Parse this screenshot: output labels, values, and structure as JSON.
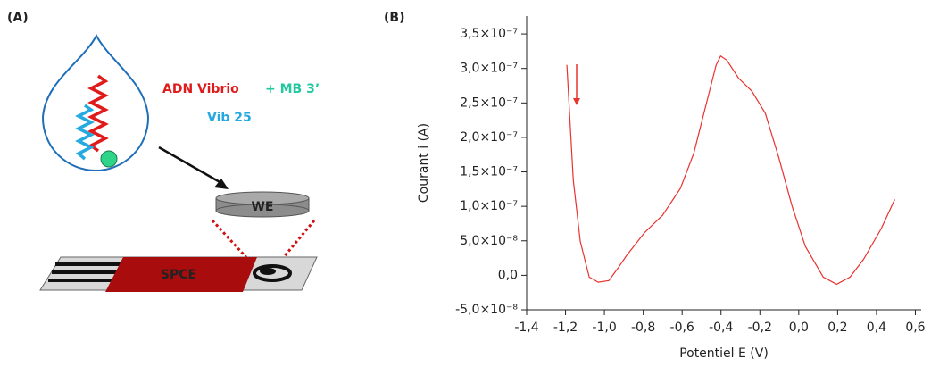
{
  "panel_a": {
    "label": "(A)",
    "target_text": "ADN Vibrio",
    "probe_text": "+ MB 3’",
    "vib_text": "Vib 25",
    "electrode_text": "WE",
    "strip_text": "SPCE"
  },
  "chart_data": {
    "type": "line",
    "panel_label": "(B)",
    "x_label": "Potentiel E (V)",
    "y_label": "Courant i (A)",
    "x": [
      -1.193,
      -1.16,
      -1.124,
      -1.078,
      -1.032,
      -0.977,
      -0.931,
      -0.885,
      -0.793,
      -0.701,
      -0.609,
      -0.54,
      -0.471,
      -0.425,
      -0.402,
      -0.37,
      -0.31,
      -0.241,
      -0.172,
      -0.103,
      -0.034,
      0.034,
      0.126,
      0.195,
      0.264,
      0.333,
      0.425,
      0.494
    ],
    "series": [
      {
        "color": "#e8332f",
        "values": [
          3.05e-07,
          1.38e-07,
          4.9e-08,
          -2.6e-09,
          -1e-08,
          -7.7e-09,
          1e-08,
          2.9e-08,
          6.2e-08,
          8.7e-08,
          1.26e-07,
          1.77e-07,
          2.54e-07,
          3.05e-07,
          3.18e-07,
          3.12e-07,
          2.86e-07,
          2.67e-07,
          2.35e-07,
          1.71e-07,
          1e-07,
          4.2e-08,
          -2.6e-09,
          -1.3e-08,
          -2.6e-09,
          2.3e-08,
          6.8e-08,
          1.1e-07
        ]
      }
    ],
    "xlim": [
      -1.4,
      0.63
    ],
    "ylim": [
      -5e-08,
      3.76e-07
    ],
    "xticks": [
      {
        "value": -1.4,
        "label": "-1,4"
      },
      {
        "value": -1.2,
        "label": "-1,2"
      },
      {
        "value": -1.0,
        "label": "-1,0"
      },
      {
        "value": -0.8,
        "label": "-0,8"
      },
      {
        "value": -0.6,
        "label": "-0,6"
      },
      {
        "value": -0.4,
        "label": "-0,4"
      },
      {
        "value": -0.2,
        "label": "-0,2"
      },
      {
        "value": 0,
        "label": "0,0"
      },
      {
        "value": 0.2,
        "label": "0,2"
      },
      {
        "value": 0.4,
        "label": "0,4"
      },
      {
        "value": 0.6,
        "label": "0,6"
      }
    ],
    "yticks": [
      {
        "value": -5e-08,
        "label": "-5,0×10⁻⁸"
      },
      {
        "value": 0,
        "label": "0,0"
      },
      {
        "value": 5e-08,
        "label": "5,0×10⁻⁸"
      },
      {
        "value": 1e-07,
        "label": "1,0×10⁻⁷"
      },
      {
        "value": 1.5e-07,
        "label": "1,5×10⁻⁷"
      },
      {
        "value": 2e-07,
        "label": "2,0×10⁻⁷"
      },
      {
        "value": 2.5e-07,
        "label": "2,5×10⁻⁷"
      },
      {
        "value": 3e-07,
        "label": "3,0×10⁻⁷"
      },
      {
        "value": 3.5e-07,
        "label": "3,5×10⁻⁷"
      }
    ]
  }
}
